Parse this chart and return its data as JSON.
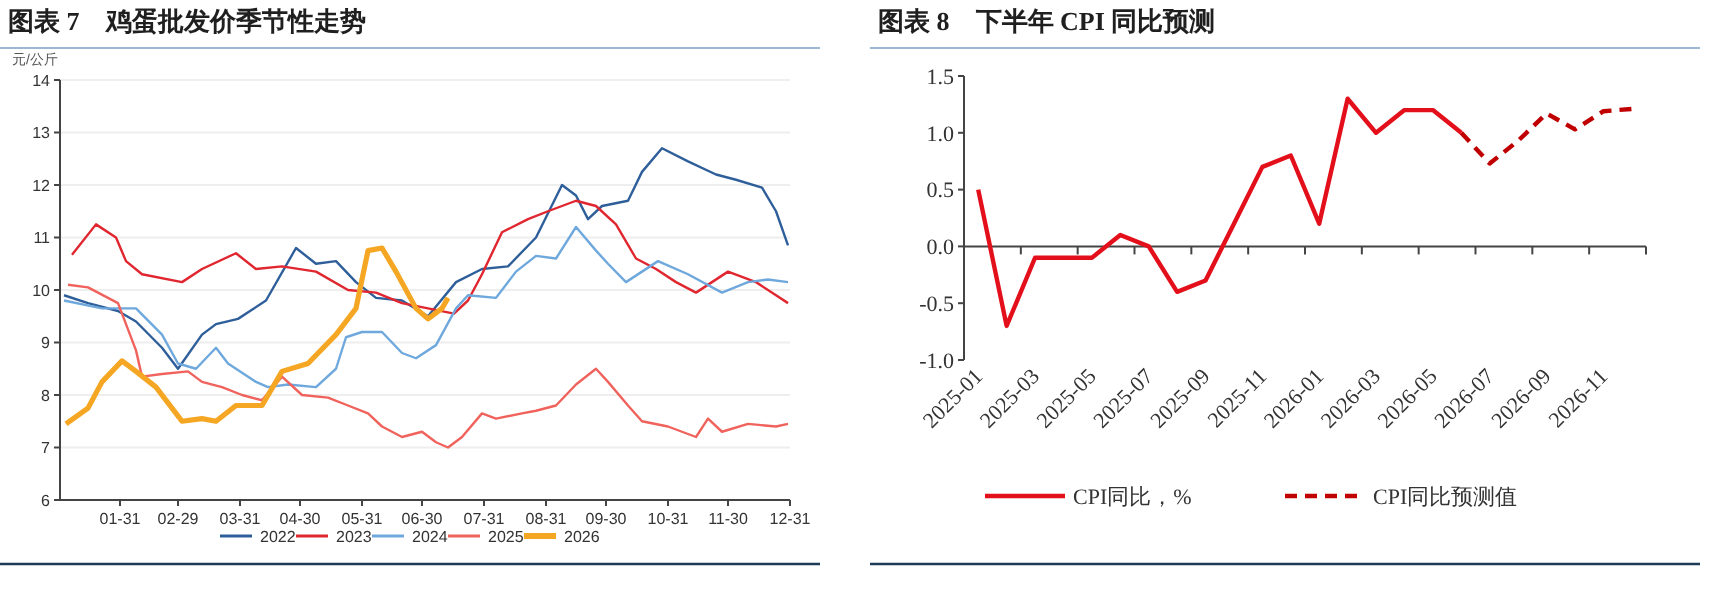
{
  "chart_data": [
    {
      "type": "line",
      "title": "图表 7　鸡蛋批发价季节性走势",
      "ylabel": "元/公斤",
      "xlim": [
        "--01-01",
        "--12-31"
      ],
      "ylim": [
        6,
        14
      ],
      "yticks": [
        6,
        7,
        8,
        9,
        10,
        11,
        12,
        13,
        14
      ],
      "xticks": [
        {
          "value": "--01-31",
          "label": "01-31"
        },
        {
          "value": "--02-29",
          "label": "02-29"
        },
        {
          "value": "--03-31",
          "label": "03-31"
        },
        {
          "value": "--04-30",
          "label": "04-30"
        },
        {
          "value": "--05-31",
          "label": "05-31"
        },
        {
          "value": "--06-30",
          "label": "06-30"
        },
        {
          "value": "--07-31",
          "label": "07-31"
        },
        {
          "value": "--08-31",
          "label": "08-31"
        },
        {
          "value": "--09-30",
          "label": "09-30"
        },
        {
          "value": "--10-31",
          "label": "10-31"
        },
        {
          "value": "--11-30",
          "label": "11-30"
        },
        {
          "value": "--12-31",
          "label": "12-31"
        }
      ],
      "grid": "y",
      "legend": "bottom",
      "series": [
        {
          "name": "2022",
          "color": "#2f5f9a",
          "x": [
            "--01-03",
            "--01-15",
            "--01-30",
            "--02-08",
            "--02-21",
            "--02-29",
            "--03-12",
            "--03-19",
            "--03-30",
            "--04-13",
            "--04-28",
            "--05-08",
            "--05-18",
            "--05-28",
            "--06-07",
            "--06-20",
            "--07-03",
            "--07-17",
            "--07-30",
            "--08-12",
            "--08-26",
            "--09-08",
            "--09-15",
            "--09-21",
            "--09-28",
            "--10-11",
            "--10-18",
            "--10-28",
            "--11-10",
            "--11-24",
            "--12-04",
            "--12-17",
            "--12-24",
            "--12-30"
          ],
          "values": [
            9.9,
            9.75,
            9.6,
            9.4,
            8.9,
            8.5,
            9.15,
            9.35,
            9.45,
            9.8,
            10.8,
            10.5,
            10.55,
            10.15,
            9.85,
            9.8,
            9.5,
            10.15,
            10.4,
            10.45,
            11.0,
            12.0,
            11.8,
            11.35,
            11.6,
            11.7,
            12.25,
            12.7,
            12.45,
            12.2,
            12.1,
            11.95,
            11.5,
            10.85
          ]
        },
        {
          "name": "2023",
          "color": "#e0262f",
          "x": [
            "--01-07",
            "--01-19",
            "--01-29",
            "--02-03",
            "--02-11",
            "--03-02",
            "--03-12",
            "--03-29",
            "--04-08",
            "--04-21",
            "--05-08",
            "--05-24",
            "--06-07",
            "--06-20",
            "--07-03",
            "--07-16",
            "--07-23",
            "--07-30",
            "--08-09",
            "--08-22",
            "--09-01",
            "--09-15",
            "--09-25",
            "--10-05",
            "--10-15",
            "--10-25",
            "--11-04",
            "--11-14",
            "--11-30",
            "--12-14",
            "--12-24",
            "--12-30"
          ],
          "values": [
            10.67,
            11.25,
            11.0,
            10.55,
            10.3,
            10.15,
            10.4,
            10.7,
            10.4,
            10.45,
            10.35,
            10.0,
            9.95,
            9.75,
            9.65,
            9.55,
            9.8,
            10.3,
            11.1,
            11.35,
            11.5,
            11.7,
            11.6,
            11.25,
            10.6,
            10.4,
            10.15,
            9.95,
            10.35,
            10.15,
            9.9,
            9.75
          ]
        },
        {
          "name": "2024",
          "color": "#6fa8dc",
          "x": [
            "--01-03",
            "--01-22",
            "--02-08",
            "--02-21",
            "--02-29",
            "--03-09",
            "--03-19",
            "--03-25",
            "--04-08",
            "--04-14",
            "--04-24",
            "--05-08",
            "--05-18",
            "--05-23",
            "--05-31",
            "--06-10",
            "--06-20",
            "--06-27",
            "--07-07",
            "--07-17",
            "--07-23",
            "--08-06",
            "--08-16",
            "--08-26",
            "--09-05",
            "--09-15",
            "--09-25",
            "--10-01",
            "--10-10",
            "--10-18",
            "--10-26",
            "--11-10",
            "--11-27",
            "--12-10",
            "--12-20",
            "--12-30"
          ],
          "values": [
            9.8,
            9.65,
            9.65,
            9.15,
            8.6,
            8.5,
            8.9,
            8.6,
            8.25,
            8.15,
            8.2,
            8.15,
            8.5,
            9.1,
            9.2,
            9.2,
            8.8,
            8.7,
            8.95,
            9.65,
            9.9,
            9.85,
            10.35,
            10.65,
            10.6,
            11.2,
            10.75,
            10.5,
            10.15,
            10.35,
            10.55,
            10.3,
            9.95,
            10.15,
            10.2,
            10.15
          ]
        },
        {
          "name": "2025",
          "color": "#f0625c",
          "x": [
            "--01-05",
            "--01-15",
            "--01-30",
            "--02-08",
            "--02-11",
            "--02-21",
            "--03-05",
            "--03-12",
            "--03-22",
            "--04-01",
            "--04-11",
            "--04-21",
            "--05-01",
            "--05-14",
            "--05-24",
            "--06-03",
            "--06-10",
            "--06-20",
            "--06-30",
            "--07-07",
            "--07-13",
            "--07-20",
            "--07-30",
            "--08-06",
            "--08-19",
            "--08-26",
            "--09-05",
            "--09-15",
            "--09-25",
            "--10-01",
            "--10-11",
            "--10-18",
            "--10-31",
            "--11-14",
            "--11-20",
            "--11-27",
            "--12-10",
            "--12-24",
            "--12-30"
          ],
          "values": [
            10.1,
            10.05,
            9.75,
            8.85,
            8.35,
            8.4,
            8.45,
            8.25,
            8.15,
            8.0,
            7.9,
            8.35,
            8.0,
            7.95,
            7.8,
            7.65,
            7.4,
            7.2,
            7.3,
            7.1,
            7.0,
            7.2,
            7.65,
            7.55,
            7.65,
            7.7,
            7.8,
            8.2,
            8.5,
            8.25,
            7.8,
            7.5,
            7.4,
            7.2,
            7.55,
            7.3,
            7.45,
            7.4,
            7.45
          ]
        },
        {
          "name": "2026",
          "color": "#f5a623",
          "x": [
            "--01-04",
            "--01-15",
            "--01-22",
            "--02-01",
            "--02-08",
            "--02-18",
            "--02-28",
            "--03-02",
            "--03-12",
            "--03-19",
            "--03-29",
            "--04-11",
            "--04-21",
            "--05-04",
            "--05-18",
            "--05-28",
            "--06-03",
            "--06-10",
            "--06-17",
            "--06-27",
            "--07-03",
            "--07-10",
            "--07-13"
          ],
          "values": [
            7.45,
            7.75,
            8.25,
            8.65,
            8.45,
            8.15,
            7.65,
            7.5,
            7.55,
            7.5,
            7.8,
            7.8,
            8.45,
            8.6,
            9.15,
            9.65,
            10.75,
            10.8,
            10.35,
            9.65,
            9.45,
            9.65,
            9.85
          ]
        }
      ]
    },
    {
      "type": "line",
      "title": "图表 8　下半年 CPI 同比预测",
      "legend": "bottom",
      "ylim": [
        -1.0,
        1.5
      ],
      "yticks": [
        {
          "value": -1,
          "label": "-1.0"
        },
        {
          "value": -0.5,
          "label": "-0.5"
        },
        {
          "value": 0,
          "label": "0.0"
        },
        {
          "value": 0.5,
          "label": "0.5"
        },
        {
          "value": 1,
          "label": "1.0"
        },
        {
          "value": 1.5,
          "label": "1.5"
        }
      ],
      "categories": [
        "2025-01",
        null,
        "2025-03",
        null,
        "2025-05",
        null,
        "2025-07",
        null,
        "2025-09",
        null,
        "2025-11",
        null,
        "2026-01",
        null,
        "2026-03",
        null,
        "2026-05",
        null,
        "2026-07",
        null,
        "2026-09",
        null,
        "2026-11",
        null
      ],
      "series": [
        {
          "name": "CPI同比，%",
          "color": "#e3101b",
          "line_style": "solid",
          "values": [
            0.5,
            -0.7,
            -0.1,
            -0.1,
            -0.1,
            0.1,
            0.0,
            -0.4,
            -0.3,
            0.2,
            0.7,
            0.8,
            0.2,
            1.3,
            1.0,
            1.2,
            1.2,
            1.0,
            null,
            null,
            null,
            null,
            null,
            null
          ]
        },
        {
          "name": "CPI同比预测值",
          "color": "#c00000",
          "line_style": "dashed",
          "values": [
            null,
            null,
            null,
            null,
            null,
            null,
            null,
            null,
            null,
            null,
            null,
            null,
            null,
            null,
            null,
            null,
            null,
            1.0,
            0.73,
            0.93,
            1.17,
            1.03,
            1.19,
            1.21
          ]
        }
      ]
    }
  ]
}
